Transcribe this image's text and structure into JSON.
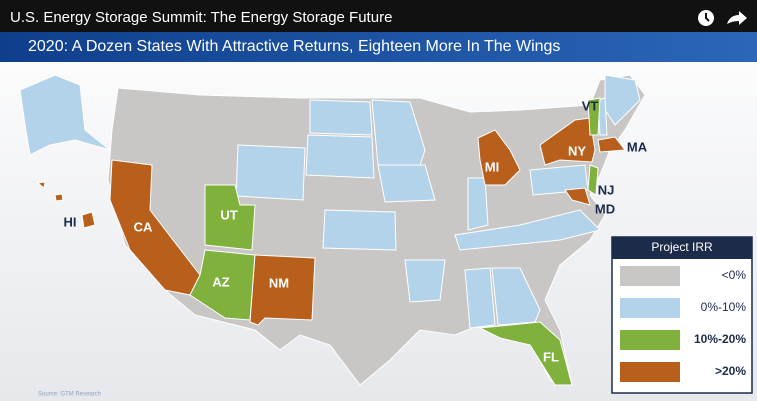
{
  "video": {
    "title": "U.S. Energy Storage Summit: The Energy Storage Future"
  },
  "slide": {
    "title": "2020: A Dozen States With Attractive Returns, Eighteen More In The Wings",
    "source": "Source: GTM Research"
  },
  "map": {
    "labels": [
      "VT",
      "MA",
      "NY",
      "NJ",
      "MD",
      "MI",
      "CA",
      "UT",
      "AZ",
      "NM",
      "FL",
      "HI"
    ]
  },
  "legend": {
    "title": "Project IRR",
    "items": [
      {
        "label": "<0%",
        "color": "#c9c7c5"
      },
      {
        "label": "0%-10%",
        "color": "#b3d3ea"
      },
      {
        "label": "10%-20%",
        "color": "#80b13c"
      },
      {
        "label": ">20%",
        "color": "#b85f1c"
      }
    ]
  }
}
